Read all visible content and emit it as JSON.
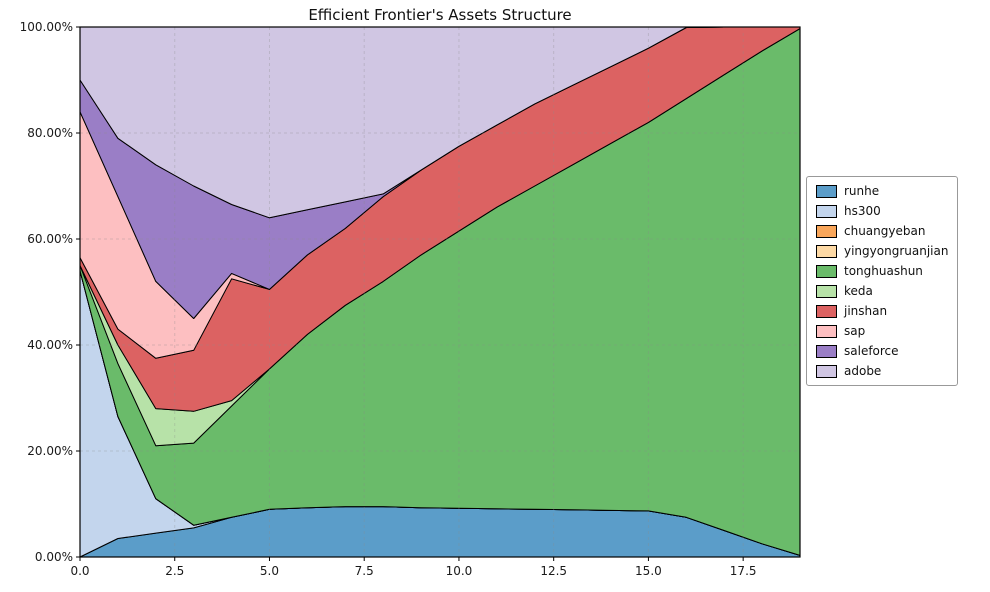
{
  "chart_data": {
    "type": "area",
    "stacked": true,
    "title": "Efficient Frontier's Assets Structure",
    "grid": "dashed",
    "legend_position": "right-outside",
    "xlim": [
      0,
      19
    ],
    "ylim": [
      0,
      100
    ],
    "x": [
      0,
      1,
      2,
      3,
      4,
      5,
      6,
      7,
      8,
      9,
      10,
      11,
      12,
      13,
      14,
      15,
      16,
      17,
      18,
      19
    ],
    "x_tick_values": [
      0,
      2.5,
      5,
      7.5,
      10,
      12.5,
      15,
      17.5
    ],
    "x_tick_labels": [
      "0.0",
      "2.5",
      "5.0",
      "7.5",
      "10.0",
      "12.5",
      "15.0",
      "17.5"
    ],
    "y_tick_values": [
      0,
      20,
      40,
      60,
      80,
      100
    ],
    "y_tick_labels": [
      "0.00%",
      "20.00%",
      "40.00%",
      "60.00%",
      "80.00%",
      "100.00%"
    ],
    "edge_color": "#000000",
    "series": [
      {
        "name": "runhe",
        "color": "#5b9dc9",
        "values": [
          0,
          3.5,
          4.5,
          5.5,
          7.5,
          9,
          9.3,
          9.5,
          9.5,
          9.3,
          9.2,
          9.1,
          9.0,
          8.9,
          8.8,
          8.7,
          7.5,
          5.0,
          2.5,
          0.3
        ]
      },
      {
        "name": "hs300",
        "color": "#c3d5ed",
        "values": [
          54,
          23,
          6.5,
          0.5,
          0,
          0,
          0,
          0,
          0,
          0,
          0,
          0,
          0,
          0,
          0,
          0,
          0,
          0,
          0,
          0
        ]
      },
      {
        "name": "chuangyeban",
        "color": "#f9a65a",
        "values": [
          0,
          0,
          0,
          0,
          0,
          0,
          0,
          0,
          0,
          0,
          0,
          0,
          0,
          0,
          0,
          0,
          0,
          0,
          0,
          0
        ]
      },
      {
        "name": "yingyongruanjian",
        "color": "#fdd9a5",
        "values": [
          0,
          0,
          0,
          0,
          0,
          0,
          0,
          0,
          0,
          0,
          0,
          0,
          0,
          0,
          0,
          0,
          0,
          0,
          0,
          0
        ]
      },
      {
        "name": "tonghuashun",
        "color": "#6abb6a",
        "values": [
          1,
          10,
          10,
          15.5,
          21,
          26.5,
          32.7,
          38,
          42.5,
          47.7,
          52.3,
          56.9,
          61,
          65.1,
          69.2,
          73.3,
          79,
          86,
          93,
          99.4
        ]
      },
      {
        "name": "keda",
        "color": "#b7e2a8",
        "values": [
          0,
          3.5,
          7,
          6,
          1,
          0,
          0,
          0,
          0,
          0,
          0,
          0,
          0,
          0,
          0,
          0,
          0,
          0,
          0,
          0
        ]
      },
      {
        "name": "jinshan",
        "color": "#dc6262",
        "values": [
          1.5,
          3,
          9.5,
          11.5,
          23,
          15,
          15,
          14.5,
          16,
          16,
          16,
          15.5,
          15.5,
          15,
          14.5,
          14,
          13.4,
          9,
          4.5,
          0.3
        ]
      },
      {
        "name": "sap",
        "color": "#fdbfc1",
        "values": [
          27.5,
          25,
          14.5,
          6,
          1,
          0,
          0,
          0,
          0,
          0,
          0,
          0,
          0,
          0,
          0,
          0,
          0,
          0,
          0,
          0
        ]
      },
      {
        "name": "saleforce",
        "color": "#9a7ec6",
        "values": [
          6,
          11,
          22,
          25,
          13,
          13.5,
          8.5,
          5,
          0.5,
          0,
          0,
          0,
          0,
          0,
          0,
          0,
          0,
          0,
          0,
          0
        ]
      },
      {
        "name": "adobe",
        "color": "#d0c6e3",
        "values": [
          10,
          21,
          26,
          30,
          33.5,
          36,
          34.5,
          33,
          31.5,
          27,
          22.5,
          18.5,
          14.5,
          11,
          7.5,
          4,
          0.1,
          0,
          0,
          0
        ]
      }
    ]
  }
}
